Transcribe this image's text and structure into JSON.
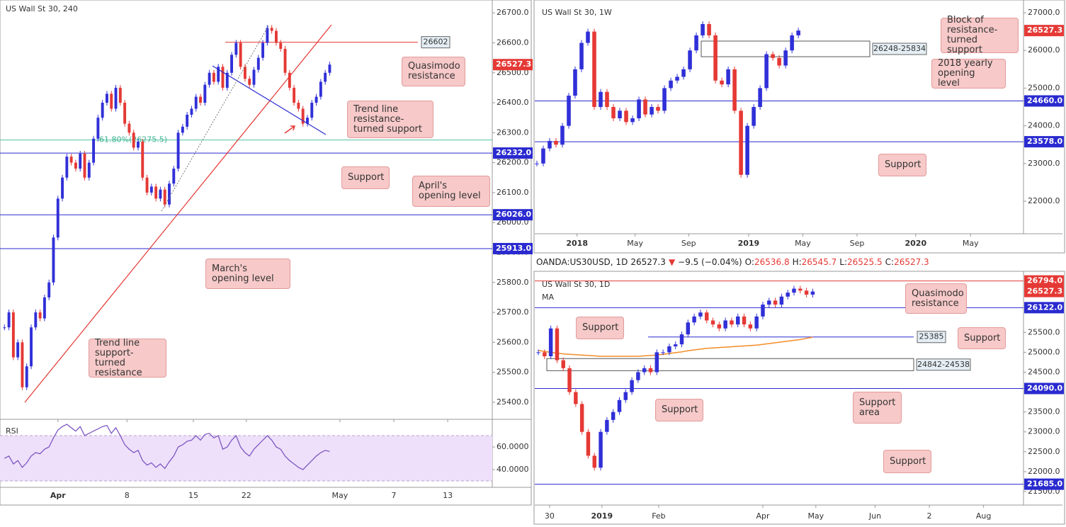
{
  "chart_data": [
    {
      "type": "candlestick",
      "title": "US Wall St 30, 240",
      "closes": [
        25650,
        25700,
        25550,
        25600,
        25450,
        25520,
        25650,
        25700,
        25680,
        25750,
        25800,
        25950,
        26080,
        26150,
        26220,
        26200,
        26180,
        26230,
        26150,
        26200,
        26280,
        26350,
        26400,
        26430,
        26380,
        26450,
        26400,
        26330,
        26300,
        26250,
        26270,
        26150,
        26100,
        26120,
        26080,
        26110,
        26060,
        26130,
        26180,
        26300,
        26320,
        26360,
        26380,
        26420,
        26400,
        26460,
        26500,
        26470,
        26520,
        26450,
        26500,
        26560,
        26600,
        26520,
        26480,
        26460,
        26510,
        26550,
        26600,
        26650,
        26640,
        26600,
        26580,
        26500,
        26450,
        26400,
        26380,
        26330,
        26350,
        26400,
        26420,
        26470,
        26500,
        26527.3
      ],
      "xlim": [
        -1,
        109.5
      ],
      "xticks": [
        {
          "value": 12,
          "label": "Apr"
        },
        {
          "value": 27.5,
          "label": "8"
        },
        {
          "value": 42.4,
          "label": "15"
        },
        {
          "value": 54.3,
          "label": "22"
        },
        {
          "value": 75.3,
          "label": "May"
        },
        {
          "value": 87.4,
          "label": "7"
        },
        {
          "value": 99.5,
          "label": "13"
        }
      ],
      "ylim": [
        25343,
        26743
      ],
      "yticks": [
        {
          "value": 25400,
          "label": "25400.0"
        },
        {
          "value": 25500,
          "label": "25500.0"
        },
        {
          "value": 25600,
          "label": "25600.0"
        },
        {
          "value": 25700,
          "label": "25700.0"
        },
        {
          "value": 25800,
          "label": "25800.0"
        },
        {
          "value": 25900,
          "label": "25900.0"
        },
        {
          "value": 26000,
          "label": "26000.0"
        },
        {
          "value": 26100,
          "label": "26100.0"
        },
        {
          "value": 26200,
          "label": "26200.0"
        },
        {
          "value": 26300,
          "label": "26300.0"
        },
        {
          "value": 26400,
          "label": "26400.0"
        },
        {
          "value": 26500,
          "label": "26500.0"
        },
        {
          "value": 26600,
          "label": "26600.0"
        },
        {
          "value": 26700,
          "label": "26700.0"
        }
      ],
      "price": 26527.3,
      "levels": [
        {
          "value": 26232,
          "label": "26232.0"
        },
        {
          "value": 26026,
          "label": "26026.0"
        },
        {
          "value": 25913,
          "label": "25913.0"
        }
      ],
      "marked_level": 26602,
      "fib": {
        "value": 26275.5,
        "label": "61.80%(26275.5)"
      },
      "annotations": [
        "Quasimodo resistance",
        "Trend line resistance-turned support",
        "Support",
        "April's opening level",
        "March's opening level",
        "Trend line support-turned resistance"
      ]
    },
    {
      "type": "line",
      "title": "RSI",
      "color": "#7e57c2",
      "values": [
        50,
        52,
        45,
        48,
        42,
        46,
        52,
        55,
        54,
        58,
        60,
        68,
        75,
        78,
        80,
        77,
        74,
        78,
        70,
        72,
        74,
        76,
        78,
        79,
        72,
        77,
        70,
        62,
        58,
        55,
        57,
        48,
        44,
        46,
        42,
        45,
        41,
        47,
        52,
        60,
        62,
        65,
        66,
        70,
        66,
        71,
        72,
        68,
        70,
        58,
        60,
        66,
        70,
        60,
        55,
        52,
        58,
        62,
        66,
        70,
        66,
        60,
        58,
        52,
        48,
        45,
        42,
        40,
        44,
        48,
        52,
        55,
        57,
        56
      ],
      "xlim": [
        -1,
        109.5
      ],
      "ylim": [
        24.4,
        84.4
      ],
      "band": [
        30,
        70
      ],
      "yticks": [
        {
          "value": 40,
          "label": "40.0000"
        },
        {
          "value": 60,
          "label": "60.0000"
        }
      ]
    },
    {
      "type": "candlestick",
      "title": "US Wall St 30, 1W",
      "closes": [
        23000,
        23400,
        23600,
        23500,
        24000,
        24800,
        25500,
        26200,
        26500,
        24500,
        24900,
        24500,
        24200,
        24400,
        24100,
        24200,
        24700,
        24300,
        24500,
        24400,
        25000,
        25200,
        25300,
        25500,
        26000,
        26400,
        26700,
        26400,
        25200,
        25100,
        25500,
        24400,
        22700,
        24000,
        24500,
        25000,
        25900,
        25800,
        25600,
        26000,
        26400,
        26527.3
      ],
      "xlim": [
        -0.33,
        76.3
      ],
      "xticks": [
        {
          "value": 6.3,
          "label": "2018"
        },
        {
          "value": 15.4,
          "label": "May"
        },
        {
          "value": 23.8,
          "label": "Sep"
        },
        {
          "value": 33.2,
          "label": "2019"
        },
        {
          "value": 41.7,
          "label": "May"
        },
        {
          "value": 50.2,
          "label": "Sep"
        },
        {
          "value": 59.4,
          "label": "2020"
        },
        {
          "value": 68,
          "label": "May"
        }
      ],
      "ylim": [
        21137,
        27338
      ],
      "yticks": [
        {
          "value": 22000,
          "label": "22000.0"
        },
        {
          "value": 23000,
          "label": "23000.0"
        },
        {
          "value": 24000,
          "label": "24000.0"
        },
        {
          "value": 25000,
          "label": "25000.0"
        },
        {
          "value": 26000,
          "label": "26000.0"
        },
        {
          "value": 27000,
          "label": "27000.0"
        }
      ],
      "price": 26527.3,
      "levels": [
        {
          "value": 24660,
          "label": "24660.0"
        },
        {
          "value": 23578,
          "label": "23578.0"
        }
      ],
      "zone": {
        "top": 26248,
        "bottom": 25834,
        "label": "26248-25834"
      },
      "annotations": [
        "Block of resistance-turned support",
        "2018 yearly opening level",
        "Support"
      ]
    },
    {
      "type": "candlestick",
      "title": "US Wall St 30, 1D",
      "header": {
        "symbol": "OANDA:US30USD, 1D",
        "last": 26527.3,
        "arrow": "▼",
        "change": "−9.5 (−0.04%)",
        "ohlc": [
          {
            "label": "O:",
            "value": 26536.8
          },
          {
            "label": "H:",
            "value": 26545.7
          },
          {
            "label": "L:",
            "value": 26525.5
          },
          {
            "label": "C:",
            "value": 26527.3
          }
        ]
      },
      "closes": [
        25000,
        24900,
        25600,
        24800,
        24600,
        24000,
        23700,
        23000,
        22400,
        22100,
        23000,
        23300,
        23500,
        23800,
        24000,
        24300,
        24500,
        24600,
        24500,
        25000,
        25000,
        25150,
        25200,
        25450,
        25750,
        25900,
        26000,
        25800,
        25700,
        25600,
        25800,
        25700,
        25900,
        25700,
        25600,
        25900,
        26200,
        26300,
        26200,
        26400,
        26500,
        26600,
        26550,
        26450,
        26527.3
      ],
      "ma": {
        "name": "MA",
        "color": "#f28c28",
        "values": [
          25050,
          25020,
          25000,
          24980,
          24960,
          24950,
          24940,
          24930,
          24920,
          24910,
          24900,
          24900,
          24900,
          24900,
          24900,
          24900,
          24900,
          24910,
          24920,
          24930,
          24950,
          24970,
          24990,
          25010,
          25040,
          25060,
          25080,
          25100,
          25110,
          25120,
          25130,
          25140,
          25150,
          25160,
          25170,
          25180,
          25200,
          25220,
          25240,
          25260,
          25280,
          25300,
          25320,
          25350,
          25380
        ]
      },
      "xlim": [
        -0.57,
        77.8
      ],
      "xticks": [
        {
          "value": 1.8,
          "label": "30"
        },
        {
          "value": 10.2,
          "label": "2019"
        },
        {
          "value": 19.3,
          "label": "Feb"
        },
        {
          "value": 36,
          "label": "Apr"
        },
        {
          "value": 44.5,
          "label": "May"
        },
        {
          "value": 54,
          "label": "Jun"
        },
        {
          "value": 62.7,
          "label": "2"
        },
        {
          "value": 71.4,
          "label": "Aug"
        }
      ],
      "ylim": [
        21161,
        27036
      ],
      "yticks": [
        {
          "value": 21500,
          "label": "21500.0"
        },
        {
          "value": 22000,
          "label": "22000.0"
        },
        {
          "value": 22500,
          "label": "22500.0"
        },
        {
          "value": 23000,
          "label": "23000.0"
        },
        {
          "value": 23500,
          "label": "23500.0"
        },
        {
          "value": 24000,
          "label": "24000.0"
        },
        {
          "value": 24500,
          "label": "24500.0"
        },
        {
          "value": 25000,
          "label": "25000.0"
        },
        {
          "value": 25500,
          "label": "25500.0"
        }
      ],
      "price": 26527.3,
      "levels": [
        {
          "value": 26794,
          "label": "26794.0",
          "color": "#e53935"
        },
        {
          "value": 26122,
          "label": "26122.0"
        },
        {
          "value": 24090,
          "label": "24090.0"
        },
        {
          "value": 21685,
          "label": "21685.0"
        }
      ],
      "marked_level": 25385,
      "zone": {
        "top": 24842,
        "bottom": 24538,
        "label": "24842-24538"
      },
      "annotations": [
        "Quasimodo resistance",
        "Support",
        "Support",
        "Support area",
        "Support",
        "Support"
      ]
    }
  ]
}
